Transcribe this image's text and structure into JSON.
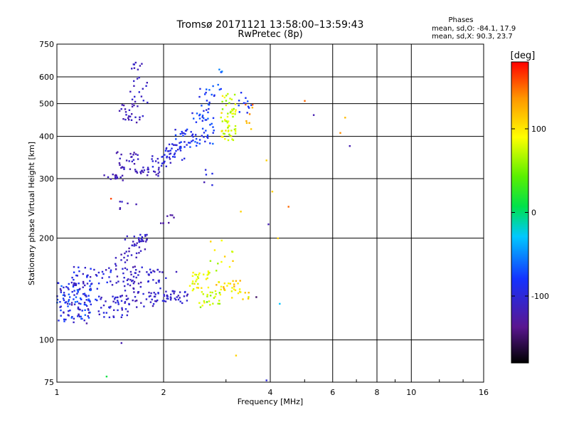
{
  "chart_data": {
    "type": "scatter",
    "title": "Tromsø 20171121 13:58:00–13:59:43",
    "subtitle": "RwPretec (8p)",
    "xlabel": "Frequency [MHz]",
    "ylabel": "Stationary phase Virtual Height [km]",
    "x_scale": "log",
    "y_scale": "log",
    "xlim": [
      1,
      16
    ],
    "ylim": [
      75,
      750
    ],
    "x_ticks": [
      1,
      2,
      4,
      6,
      8,
      10,
      16
    ],
    "y_ticks": [
      75,
      100,
      200,
      300,
      400,
      500,
      600,
      750
    ],
    "grid": true,
    "info": {
      "heading": "Phases",
      "line1": "mean, sd,O: -84.1, 17.9",
      "line2": "mean, sd,X: 90.3, 23.7"
    },
    "colorbar": {
      "label": "[deg]",
      "range": [
        -180,
        180
      ],
      "ticks": [
        100,
        0,
        -100
      ],
      "palette": "rainbow (black → purple → blue → cyan → green → yellow → orange → red)"
    },
    "clusters": [
      {
        "f": [
          1.0,
          1.25
        ],
        "h": [
          112,
          130
        ],
        "phase": [
          -130,
          -60
        ],
        "n": 55
      },
      {
        "f": [
          1.0,
          1.3
        ],
        "h": [
          128,
          150
        ],
        "phase": [
          -120,
          -60
        ],
        "n": 70
      },
      {
        "f": [
          1.1,
          1.45
        ],
        "h": [
          145,
          165
        ],
        "phase": [
          -120,
          -80
        ],
        "n": 40
      },
      {
        "f": [
          1.3,
          1.6
        ],
        "h": [
          115,
          135
        ],
        "phase": [
          -120,
          -90
        ],
        "n": 45
      },
      {
        "f": [
          1.45,
          1.7
        ],
        "h": [
          130,
          180
        ],
        "phase": [
          -125,
          -100
        ],
        "n": 45
      },
      {
        "f": [
          1.6,
          1.95
        ],
        "h": [
          125,
          165
        ],
        "phase": [
          -125,
          -95
        ],
        "n": 40
      },
      {
        "f": [
          1.8,
          2.2
        ],
        "h": [
          130,
          160
        ],
        "phase": [
          -120,
          -95
        ],
        "n": 35
      },
      {
        "f": [
          2.0,
          2.35
        ],
        "h": [
          128,
          140
        ],
        "phase": [
          -120,
          -95
        ],
        "n": 20
      },
      {
        "f": [
          1.55,
          1.8
        ],
        "h": [
          180,
          205
        ],
        "phase": [
          -125,
          -105
        ],
        "n": 25
      },
      {
        "f": [
          1.7,
          1.8
        ],
        "h": [
          195,
          205
        ],
        "phase": [
          -120,
          -100
        ],
        "n": 12
      },
      {
        "f": [
          1.35,
          1.55
        ],
        "h": [
          296,
          310
        ],
        "phase": [
          -125,
          -105
        ],
        "n": 15
      },
      {
        "f": [
          1.45,
          1.7
        ],
        "h": [
          320,
          360
        ],
        "phase": [
          -125,
          -105
        ],
        "n": 25
      },
      {
        "f": [
          1.65,
          1.95
        ],
        "h": [
          305,
          325
        ],
        "phase": [
          -125,
          -105
        ],
        "n": 25
      },
      {
        "f": [
          1.85,
          2.1
        ],
        "h": [
          325,
          350
        ],
        "phase": [
          -115,
          -90
        ],
        "n": 20
      },
      {
        "f": [
          2.0,
          2.3
        ],
        "h": [
          340,
          380
        ],
        "phase": [
          -110,
          -80
        ],
        "n": 25
      },
      {
        "f": [
          2.15,
          2.5
        ],
        "h": [
          370,
          420
        ],
        "phase": [
          -105,
          -70
        ],
        "n": 30
      },
      {
        "f": [
          2.4,
          2.8
        ],
        "h": [
          380,
          480
        ],
        "phase": [
          -100,
          -60
        ],
        "n": 40
      },
      {
        "f": [
          2.5,
          2.8
        ],
        "h": [
          480,
          560
        ],
        "phase": [
          -100,
          -60
        ],
        "n": 15
      },
      {
        "f": [
          2.7,
          2.95
        ],
        "h": [
          550,
          640
        ],
        "phase": [
          -90,
          -50
        ],
        "n": 8
      },
      {
        "f": [
          1.5,
          1.75
        ],
        "h": [
          440,
          500
        ],
        "phase": [
          -125,
          -105
        ],
        "n": 25
      },
      {
        "f": [
          1.6,
          1.8
        ],
        "h": [
          500,
          600
        ],
        "phase": [
          -120,
          -100
        ],
        "n": 15
      },
      {
        "f": [
          1.6,
          1.75
        ],
        "h": [
          620,
          665
        ],
        "phase": [
          -120,
          -105
        ],
        "n": 8
      },
      {
        "f": [
          2.9,
          3.2
        ],
        "h": [
          390,
          470
        ],
        "phase": [
          60,
          110
        ],
        "n": 40
      },
      {
        "f": [
          2.9,
          3.2
        ],
        "h": [
          470,
          540
        ],
        "phase": [
          50,
          100
        ],
        "n": 20
      },
      {
        "f": [
          3.2,
          3.55
        ],
        "h": [
          470,
          540
        ],
        "phase": [
          -100,
          -70
        ],
        "n": 12
      },
      {
        "f": [
          3.4,
          3.7
        ],
        "h": [
          420,
          510
        ],
        "phase": [
          90,
          160
        ],
        "n": 8
      },
      {
        "f": [
          2.35,
          2.7
        ],
        "h": [
          140,
          160
        ],
        "phase": [
          70,
          110
        ],
        "n": 30
      },
      {
        "f": [
          2.5,
          2.9
        ],
        "h": [
          125,
          140
        ],
        "phase": [
          40,
          100
        ],
        "n": 25
      },
      {
        "f": [
          2.8,
          3.3
        ],
        "h": [
          138,
          150
        ],
        "phase": [
          80,
          130
        ],
        "n": 25
      },
      {
        "f": [
          2.7,
          3.2
        ],
        "h": [
          160,
          200
        ],
        "phase": [
          60,
          120
        ],
        "n": 12
      },
      {
        "f": [
          3.1,
          3.5
        ],
        "h": [
          132,
          140
        ],
        "phase": [
          70,
          120
        ],
        "n": 8
      },
      {
        "f": [
          1.95,
          2.15
        ],
        "h": [
          220,
          235
        ],
        "phase": [
          -130,
          -110
        ],
        "n": 8
      },
      {
        "f": [
          1.5,
          1.7
        ],
        "h": [
          240,
          260
        ],
        "phase": [
          -125,
          -105
        ],
        "n": 6
      },
      {
        "f": [
          2.6,
          2.75
        ],
        "h": [
          280,
          320
        ],
        "phase": [
          -120,
          -90
        ],
        "n": 5
      }
    ],
    "points": [
      {
        "f": 1.42,
        "h": 262,
        "phase": 160
      },
      {
        "f": 4.5,
        "h": 248,
        "phase": 150
      },
      {
        "f": 6.7,
        "h": 375,
        "phase": -120
      },
      {
        "f": 6.5,
        "h": 455,
        "phase": 120
      },
      {
        "f": 6.3,
        "h": 410,
        "phase": 140
      },
      {
        "f": 5.3,
        "h": 463,
        "phase": -120
      },
      {
        "f": 5.0,
        "h": 510,
        "phase": 150
      },
      {
        "f": 3.9,
        "h": 340,
        "phase": 110
      },
      {
        "f": 4.05,
        "h": 275,
        "phase": 110
      },
      {
        "f": 3.95,
        "h": 220,
        "phase": -120
      },
      {
        "f": 4.2,
        "h": 200,
        "phase": 110
      },
      {
        "f": 3.3,
        "h": 240,
        "phase": 110
      },
      {
        "f": 3.2,
        "h": 90,
        "phase": 110
      },
      {
        "f": 1.52,
        "h": 98,
        "phase": -120
      },
      {
        "f": 1.38,
        "h": 78,
        "phase": 10
      },
      {
        "f": 3.9,
        "h": 76,
        "phase": -100
      },
      {
        "f": 4.25,
        "h": 128,
        "phase": -30
      },
      {
        "f": 3.65,
        "h": 134,
        "phase": -150
      }
    ]
  }
}
